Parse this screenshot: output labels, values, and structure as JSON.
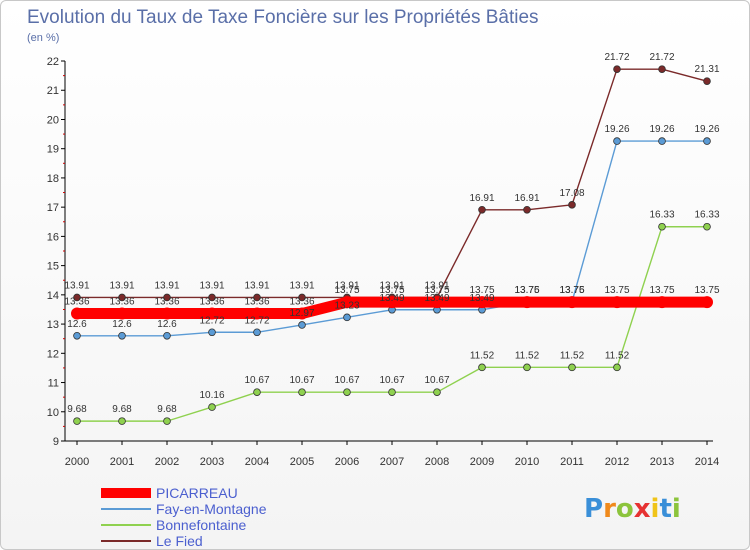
{
  "chart_data": {
    "type": "line",
    "title": "Evolution du Taux de Taxe Foncière sur les Propriétés Bâties",
    "subtitle": "(en %)",
    "x": [
      "2000",
      "2001",
      "2002",
      "2003",
      "2004",
      "2005",
      "2006",
      "2007",
      "2008",
      "2009",
      "2010",
      "2011",
      "2012",
      "2013",
      "2014"
    ],
    "ylim": [
      9,
      22
    ],
    "yticks": [
      9,
      10,
      11,
      12,
      13,
      14,
      15,
      16,
      17,
      18,
      19,
      20,
      21,
      22
    ],
    "grid": false,
    "legend_position": "bottom-left",
    "series": [
      {
        "name": "PICARREAU",
        "color": "#ff0000",
        "values": [
          13.36,
          13.36,
          13.36,
          13.36,
          13.36,
          13.36,
          13.75,
          13.75,
          13.75,
          13.75,
          13.75,
          13.75,
          13.75,
          13.75,
          13.75
        ],
        "labels": [
          "13.36",
          "13.36",
          "13.36",
          "13.36",
          "13.36",
          "13.36",
          "13.75",
          "13.75",
          "13.75",
          "13.75",
          "13.75",
          "13.75",
          "13.75",
          "13.75",
          "13.75"
        ]
      },
      {
        "name": "Fay-en-Montagne",
        "color": "#5b9bd5",
        "values": [
          12.6,
          12.6,
          12.6,
          12.72,
          12.72,
          12.97,
          13.23,
          13.49,
          13.49,
          13.49,
          13.76,
          13.76,
          19.26,
          19.26,
          19.26
        ],
        "labels": [
          "12.6",
          "12.6",
          "12.6",
          "12.72",
          "12.72",
          "12.97",
          "13.23",
          "13.49",
          "13.49",
          "13.49",
          "13.76",
          "13.76",
          "19.26",
          "19.26",
          "19.26"
        ]
      },
      {
        "name": "Bonnefontaine",
        "color": "#8fd14f",
        "values": [
          9.68,
          9.68,
          9.68,
          10.16,
          10.67,
          10.67,
          10.67,
          10.67,
          10.67,
          11.52,
          11.52,
          11.52,
          11.52,
          16.33,
          16.33
        ],
        "labels": [
          "9.68",
          "9.68",
          "9.68",
          "10.16",
          "10.67",
          "10.67",
          "10.67",
          "10.67",
          "10.67",
          "11.52",
          "11.52",
          "11.52",
          "11.52",
          "16.33",
          "16.33"
        ]
      },
      {
        "name": "Le Fied",
        "color": "#7b2a2a",
        "values": [
          13.91,
          13.91,
          13.91,
          13.91,
          13.91,
          13.91,
          13.91,
          13.91,
          13.91,
          16.91,
          16.91,
          17.08,
          21.72,
          21.72,
          21.31
        ],
        "labels": [
          "13.91",
          "13.91",
          "13.91",
          "13.91",
          "13.91",
          "13.91",
          "13.91",
          "13.91",
          "13.91",
          "16.91",
          "16.91",
          "17.08",
          "21.72",
          "21.72",
          "21.31"
        ]
      }
    ]
  },
  "logo": {
    "text": "Proxiti",
    "letter_colors": [
      "#3a8fd8",
      "#f08a1c",
      "#8cc43c",
      "#e63232",
      "#f0c419",
      "#3a8fd8",
      "#8cc43c"
    ]
  }
}
